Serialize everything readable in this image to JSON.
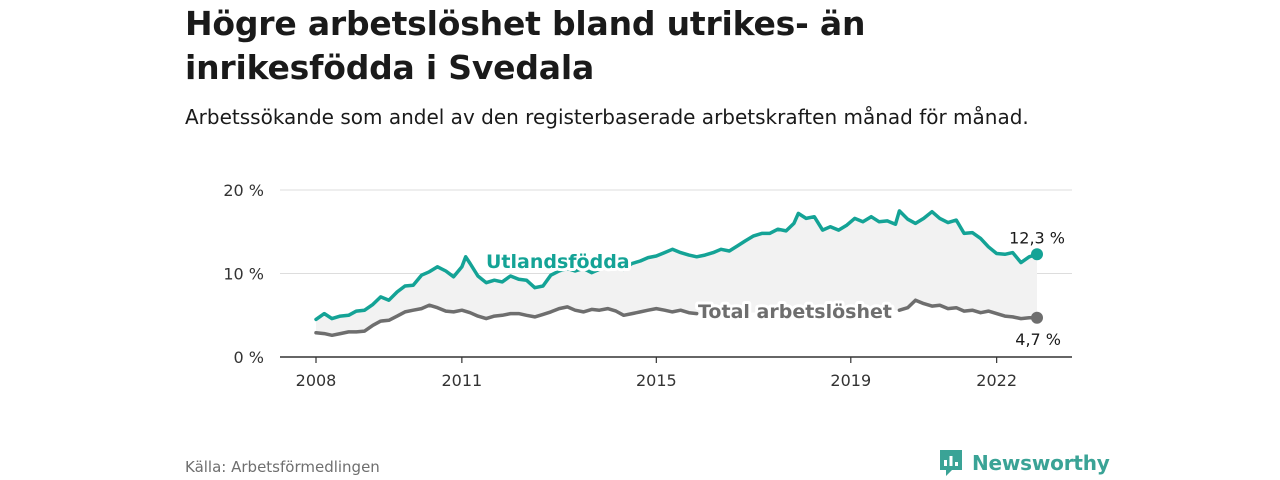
{
  "title": "Högre arbetslöshet bland utrikes- än inrikesfödda i Svedala",
  "subtitle": "Arbetssökande som andel av den registerbaserade arbetskraften månad för månad.",
  "source": "Källa: Arbetsförmedlingen",
  "brand": "Newsworthy",
  "colors": {
    "foreign": "#14a396",
    "total": "#6e6e6e",
    "band": "#f2f2f2",
    "grid": "#dddddd",
    "axis": "#333333",
    "brand": "#3aa396"
  },
  "chart_data": {
    "type": "line",
    "title": "Högre arbetslöshet bland utrikes- än inrikesfödda i Svedala",
    "xlabel": "",
    "ylabel": "",
    "x_range": [
      2008.0,
      2022.83
    ],
    "ylim": [
      0,
      20
    ],
    "y_ticks": [
      0,
      10,
      20
    ],
    "y_tick_labels": [
      "0 %",
      "10 %",
      "20 %"
    ],
    "x_ticks": [
      2008,
      2011,
      2015,
      2019,
      2022
    ],
    "x_tick_labels": [
      "2008",
      "2011",
      "2015",
      "2019",
      "2022"
    ],
    "grid": true,
    "series": [
      {
        "name": "Utlandsfödda",
        "label": "Utlandsfödda",
        "end_label": "12,3 %",
        "color": "#14a396",
        "points": [
          [
            2008.0,
            4.5
          ],
          [
            2008.17,
            5.2
          ],
          [
            2008.33,
            4.6
          ],
          [
            2008.5,
            4.9
          ],
          [
            2008.67,
            5.0
          ],
          [
            2008.83,
            5.5
          ],
          [
            2009.0,
            5.6
          ],
          [
            2009.17,
            6.3
          ],
          [
            2009.33,
            7.2
          ],
          [
            2009.5,
            6.8
          ],
          [
            2009.67,
            7.8
          ],
          [
            2009.83,
            8.5
          ],
          [
            2010.0,
            8.6
          ],
          [
            2010.17,
            9.8
          ],
          [
            2010.33,
            10.2
          ],
          [
            2010.5,
            10.8
          ],
          [
            2010.67,
            10.3
          ],
          [
            2010.83,
            9.6
          ],
          [
            2011.0,
            10.8
          ],
          [
            2011.08,
            12.0
          ],
          [
            2011.17,
            11.2
          ],
          [
            2011.33,
            9.7
          ],
          [
            2011.5,
            8.9
          ],
          [
            2011.67,
            9.2
          ],
          [
            2011.83,
            9.0
          ],
          [
            2012.0,
            9.7
          ],
          [
            2012.17,
            9.3
          ],
          [
            2012.33,
            9.2
          ],
          [
            2012.5,
            8.3
          ],
          [
            2012.67,
            8.5
          ],
          [
            2012.83,
            9.8
          ],
          [
            2013.0,
            10.3
          ],
          [
            2013.17,
            10.6
          ],
          [
            2013.33,
            10.3
          ],
          [
            2013.5,
            10.6
          ],
          [
            2013.67,
            10.1
          ],
          [
            2013.83,
            10.5
          ],
          [
            2014.0,
            10.9
          ],
          [
            2014.17,
            11.2
          ],
          [
            2014.33,
            10.5
          ],
          [
            2014.5,
            11.2
          ],
          [
            2014.67,
            11.5
          ],
          [
            2014.83,
            11.9
          ],
          [
            2015.0,
            12.1
          ],
          [
            2015.17,
            12.5
          ],
          [
            2015.33,
            12.9
          ],
          [
            2015.5,
            12.5
          ],
          [
            2015.67,
            12.2
          ],
          [
            2015.83,
            12.0
          ],
          [
            2016.0,
            12.2
          ],
          [
            2016.17,
            12.5
          ],
          [
            2016.33,
            12.9
          ],
          [
            2016.5,
            12.7
          ],
          [
            2016.67,
            13.3
          ],
          [
            2016.83,
            13.9
          ],
          [
            2017.0,
            14.5
          ],
          [
            2017.17,
            14.8
          ],
          [
            2017.33,
            14.8
          ],
          [
            2017.5,
            15.3
          ],
          [
            2017.67,
            15.1
          ],
          [
            2017.83,
            16.0
          ],
          [
            2017.92,
            17.2
          ],
          [
            2018.08,
            16.6
          ],
          [
            2018.25,
            16.8
          ],
          [
            2018.42,
            15.2
          ],
          [
            2018.58,
            15.6
          ],
          [
            2018.75,
            15.2
          ],
          [
            2018.92,
            15.8
          ],
          [
            2019.08,
            16.6
          ],
          [
            2019.25,
            16.2
          ],
          [
            2019.42,
            16.8
          ],
          [
            2019.58,
            16.2
          ],
          [
            2019.75,
            16.3
          ],
          [
            2019.92,
            15.9
          ],
          [
            2020.0,
            17.5
          ],
          [
            2020.17,
            16.5
          ],
          [
            2020.33,
            16.0
          ],
          [
            2020.5,
            16.6
          ],
          [
            2020.67,
            17.4
          ],
          [
            2020.83,
            16.6
          ],
          [
            2021.0,
            16.1
          ],
          [
            2021.17,
            16.4
          ],
          [
            2021.33,
            14.8
          ],
          [
            2021.5,
            14.9
          ],
          [
            2021.67,
            14.2
          ],
          [
            2021.83,
            13.2
          ],
          [
            2022.0,
            12.4
          ],
          [
            2022.17,
            12.3
          ],
          [
            2022.33,
            12.5
          ],
          [
            2022.5,
            11.3
          ],
          [
            2022.67,
            12.0
          ],
          [
            2022.83,
            12.3
          ]
        ]
      },
      {
        "name": "Total arbetslöshet",
        "label": "Total arbetslöshet",
        "end_label": "4,7 %",
        "color": "#6e6e6e",
        "points": [
          [
            2008.0,
            2.9
          ],
          [
            2008.17,
            2.8
          ],
          [
            2008.33,
            2.6
          ],
          [
            2008.5,
            2.8
          ],
          [
            2008.67,
            3.0
          ],
          [
            2008.83,
            3.0
          ],
          [
            2009.0,
            3.1
          ],
          [
            2009.17,
            3.8
          ],
          [
            2009.33,
            4.3
          ],
          [
            2009.5,
            4.4
          ],
          [
            2009.67,
            4.9
          ],
          [
            2009.83,
            5.4
          ],
          [
            2010.0,
            5.6
          ],
          [
            2010.17,
            5.8
          ],
          [
            2010.33,
            6.2
          ],
          [
            2010.5,
            5.9
          ],
          [
            2010.67,
            5.5
          ],
          [
            2010.83,
            5.4
          ],
          [
            2011.0,
            5.6
          ],
          [
            2011.17,
            5.3
          ],
          [
            2011.33,
            4.9
          ],
          [
            2011.5,
            4.6
          ],
          [
            2011.67,
            4.9
          ],
          [
            2011.83,
            5.0
          ],
          [
            2012.0,
            5.2
          ],
          [
            2012.17,
            5.2
          ],
          [
            2012.33,
            5.0
          ],
          [
            2012.5,
            4.8
          ],
          [
            2012.67,
            5.1
          ],
          [
            2012.83,
            5.4
          ],
          [
            2013.0,
            5.8
          ],
          [
            2013.17,
            6.0
          ],
          [
            2013.33,
            5.6
          ],
          [
            2013.5,
            5.4
          ],
          [
            2013.67,
            5.7
          ],
          [
            2013.83,
            5.6
          ],
          [
            2014.0,
            5.8
          ],
          [
            2014.17,
            5.5
          ],
          [
            2014.33,
            5.0
          ],
          [
            2014.5,
            5.2
          ],
          [
            2014.67,
            5.4
          ],
          [
            2014.83,
            5.6
          ],
          [
            2015.0,
            5.8
          ],
          [
            2015.17,
            5.6
          ],
          [
            2015.33,
            5.4
          ],
          [
            2015.5,
            5.6
          ],
          [
            2015.67,
            5.3
          ],
          [
            2015.83,
            5.2
          ],
          [
            2020.0,
            5.6
          ],
          [
            2020.17,
            5.9
          ],
          [
            2020.33,
            6.8
          ],
          [
            2020.5,
            6.4
          ],
          [
            2020.67,
            6.1
          ],
          [
            2020.83,
            6.2
          ],
          [
            2021.0,
            5.8
          ],
          [
            2021.17,
            5.9
          ],
          [
            2021.33,
            5.5
          ],
          [
            2021.5,
            5.6
          ],
          [
            2021.67,
            5.3
          ],
          [
            2021.83,
            5.5
          ],
          [
            2022.0,
            5.2
          ],
          [
            2022.17,
            4.9
          ],
          [
            2022.33,
            4.8
          ],
          [
            2022.5,
            4.6
          ],
          [
            2022.67,
            4.7
          ],
          [
            2022.83,
            4.7
          ]
        ]
      }
    ]
  }
}
